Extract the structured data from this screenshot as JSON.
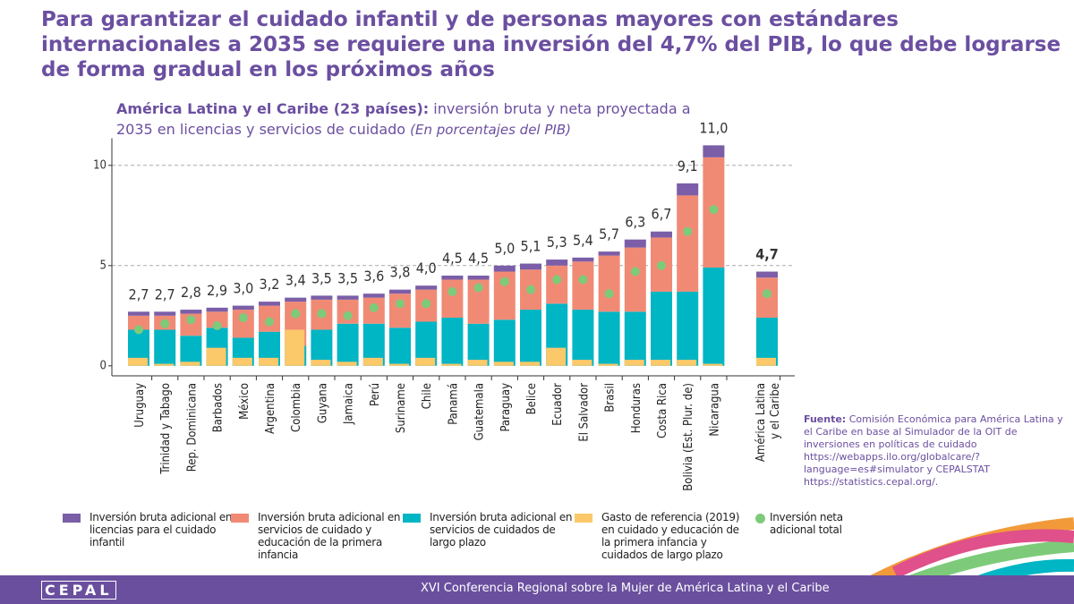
{
  "chart_data": {
    "type": "bar",
    "title": "Para garantizar el cuidado infantil y de personas mayores con estándares internacionales a 2035 se requiere una inversión del 4,7% del PIB, lo que debe lograrse de forma gradual en los próximos años",
    "subtitle_bold": "América Latina y el Caribe (23 países):",
    "subtitle": "inversión bruta y neta proyectada a 2035 en licencias y servicios de cuidado",
    "subtitle_italic": "(En porcentajes del PIB)",
    "categories": [
      "Uruguay",
      "Trinidad y Tabago",
      "Rep. Dominicana",
      "Barbados",
      "México",
      "Argentina",
      "Colombia",
      "Guyana",
      "Jamaica",
      "Perú",
      "Suriname",
      "Chile",
      "Panamá",
      "Guatemala",
      "Paraguay",
      "Belice",
      "Ecuador",
      "El Salvador",
      "Brasil",
      "Honduras",
      "Costa Rica",
      "Bolivia (Est. Plur. de)",
      "Nicaragua",
      "América Latina y el Caribe"
    ],
    "stacked_series": [
      {
        "name": "Inversión bruta adicional en licencias para el cuidado infantil",
        "color": "#7b5ea7",
        "values": [
          0.2,
          0.2,
          0.2,
          0.2,
          0.2,
          0.2,
          0.2,
          0.2,
          0.2,
          0.2,
          0.2,
          0.2,
          0.2,
          0.2,
          0.3,
          0.3,
          0.3,
          0.2,
          0.2,
          0.4,
          0.3,
          0.6,
          0.6,
          0.3
        ]
      },
      {
        "name": "Inversión bruta adicional en servicios de cuidado y educación de la primera infancia",
        "color": "#f08a75",
        "values": [
          0.7,
          0.7,
          1.1,
          0.8,
          1.4,
          1.3,
          2.2,
          1.5,
          1.2,
          1.3,
          1.7,
          1.6,
          1.9,
          2.2,
          2.4,
          2.0,
          1.9,
          2.4,
          2.8,
          3.2,
          2.7,
          4.8,
          5.5,
          2.0
        ]
      },
      {
        "name": "Inversión bruta adicional en servicios de cuidados de largo plazo",
        "color": "#00b5c4",
        "values": [
          1.8,
          1.8,
          1.5,
          1.9,
          1.4,
          1.7,
          1.0,
          1.8,
          2.1,
          2.1,
          1.9,
          2.2,
          2.4,
          2.1,
          2.3,
          2.8,
          3.1,
          2.8,
          2.7,
          2.7,
          3.7,
          3.7,
          4.9,
          2.4
        ]
      }
    ],
    "reference_series": {
      "name": "Gasto de referencia (2019) en cuidado y educación de la primera infancia y cuidados de largo plazo",
      "color": "#fbc86a",
      "values": [
        0.4,
        0.1,
        0.2,
        0.9,
        0.4,
        0.4,
        1.8,
        0.3,
        0.2,
        0.4,
        0.1,
        0.4,
        0.1,
        0.3,
        0.2,
        0.2,
        0.9,
        0.3,
        0.1,
        0.3,
        0.3,
        0.3,
        0.1,
        0.4
      ]
    },
    "net_series": {
      "name": "Inversión neta adicional total",
      "color": "#7dcb7a",
      "values": [
        1.8,
        2.1,
        2.3,
        2.0,
        2.4,
        2.2,
        2.6,
        2.6,
        2.5,
        2.9,
        3.1,
        3.1,
        3.7,
        3.9,
        4.2,
        3.8,
        4.3,
        4.3,
        3.6,
        4.7,
        5.0,
        6.7,
        7.8,
        3.6
      ]
    },
    "totals": [
      2.7,
      2.7,
      2.8,
      2.9,
      3.0,
      3.2,
      3.4,
      3.5,
      3.5,
      3.6,
      3.8,
      4.0,
      4.5,
      4.5,
      5.0,
      5.1,
      5.3,
      5.4,
      5.7,
      6.3,
      6.7,
      9.1,
      11.0,
      4.7
    ],
    "total_labels": [
      "2,7",
      "2,7",
      "2,8",
      "2,9",
      "3,0",
      "3,2",
      "3,4",
      "3,5",
      "3,5",
      "3,6",
      "3,8",
      "4,0",
      "4,5",
      "4,5",
      "5,0",
      "5,1",
      "5,3",
      "5,4",
      "5,7",
      "6,3",
      "6,7",
      "9,1",
      "11,0",
      "4,7"
    ],
    "ylim": [
      -0.5,
      11.8
    ],
    "yticks": [
      0,
      5,
      10
    ],
    "grid": true,
    "source": {
      "label": "Fuente:",
      "text": "Comisión Económica para América Latina y el Caribe en base al Simulador de la OIT de inversiones en políticas de cuidado",
      "url": "https://webapps.ilo.org/globalcare/?language=es#simulator",
      "text2": "y CEPALSTAT https://statistics.cepal.org/."
    },
    "logo": "CEPAL",
    "footer": "XVI  Conferencia Regional sobre la Mujer de América Latina y el Caribe"
  }
}
